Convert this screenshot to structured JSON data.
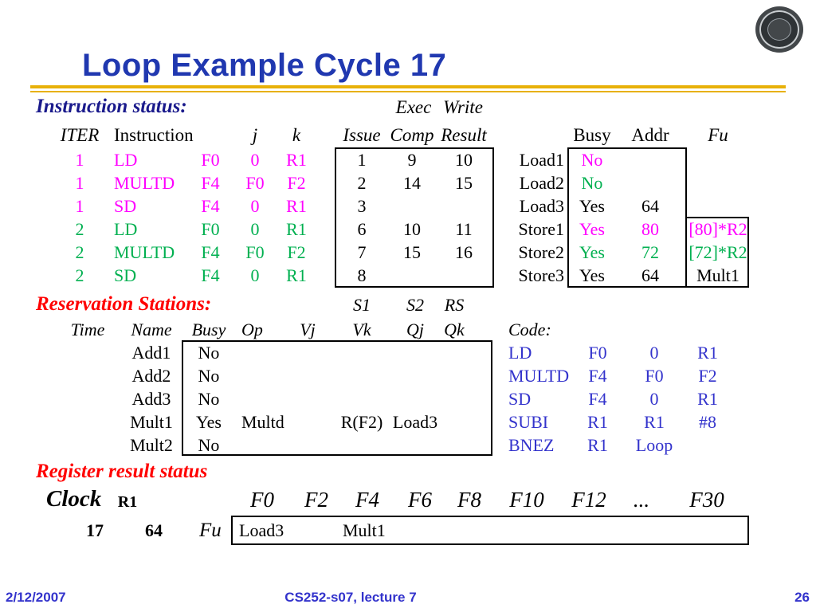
{
  "styles": {
    "title": "color:#2038B0",
    "navy": "color:#1A1A8C",
    "red": "color:#FF0000",
    "blue": "color:#3333CC",
    "magenta": "color:#FF00FF",
    "green": "color:#00B050",
    "black": "color:#000000"
  },
  "title": "Loop Example Cycle 17",
  "instruction_status": {
    "label": "Instruction status:",
    "exec": "Exec",
    "write": "Write",
    "headers": {
      "iter": "ITER",
      "instruction": "Instruction",
      "j": "j",
      "k": "k",
      "issue": "Issue",
      "comp": "Comp",
      "result": "Result",
      "busy": "Busy",
      "addr": "Addr",
      "fu": "Fu"
    },
    "rows": [
      {
        "iter": "1",
        "op": "LD",
        "dest": "F0",
        "j": "0",
        "k": "R1",
        "issue": "1",
        "comp": "9",
        "result": "10"
      },
      {
        "iter": "1",
        "op": "MULTD",
        "dest": "F4",
        "j": "F0",
        "k": "F2",
        "issue": "2",
        "comp": "14",
        "result": "15"
      },
      {
        "iter": "1",
        "op": "SD",
        "dest": "F4",
        "j": "0",
        "k": "R1",
        "issue": "3",
        "comp": "",
        "result": ""
      },
      {
        "iter": "2",
        "op": "LD",
        "dest": "F0",
        "j": "0",
        "k": "R1",
        "issue": "6",
        "comp": "10",
        "result": "11"
      },
      {
        "iter": "2",
        "op": "MULTD",
        "dest": "F4",
        "j": "F0",
        "k": "F2",
        "issue": "7",
        "comp": "15",
        "result": "16"
      },
      {
        "iter": "2",
        "op": "SD",
        "dest": "F4",
        "j": "0",
        "k": "R1",
        "issue": "8",
        "comp": "",
        "result": ""
      }
    ],
    "load_store": [
      {
        "name": "Load1",
        "busy": "No",
        "addr": "",
        "fu": ""
      },
      {
        "name": "Load2",
        "busy": "No",
        "addr": "",
        "fu": ""
      },
      {
        "name": "Load3",
        "busy": "Yes",
        "addr": "64",
        "fu": ""
      },
      {
        "name": "Store1",
        "busy": "Yes",
        "addr": "80",
        "fu": "[80]*R2"
      },
      {
        "name": "Store2",
        "busy": "Yes",
        "addr": "72",
        "fu": "[72]*R2"
      },
      {
        "name": "Store3",
        "busy": "Yes",
        "addr": "64",
        "fu": "Mult1"
      }
    ]
  },
  "reservation_stations": {
    "label": "Reservation Stations:",
    "s1": "S1",
    "s2": "S2",
    "rs": "RS",
    "headers": {
      "time": "Time",
      "name": "Name",
      "busy": "Busy",
      "op": "Op",
      "vj": "Vj",
      "vk": "Vk",
      "qj": "Qj",
      "qk": "Qk",
      "code": "Code:"
    },
    "rows": [
      {
        "name": "Add1",
        "busy": "No",
        "op": "",
        "vj": "",
        "vk": "",
        "qj": "",
        "qk": ""
      },
      {
        "name": "Add2",
        "busy": "No",
        "op": "",
        "vj": "",
        "vk": "",
        "qj": "",
        "qk": ""
      },
      {
        "name": "Add3",
        "busy": "No",
        "op": "",
        "vj": "",
        "vk": "",
        "qj": "",
        "qk": ""
      },
      {
        "name": "Mult1",
        "busy": "Yes",
        "op": "Multd",
        "vj": "",
        "vk": "R(F2)",
        "qj": "Load3",
        "qk": ""
      },
      {
        "name": "Mult2",
        "busy": "No",
        "op": "",
        "vj": "",
        "vk": "",
        "qj": "",
        "qk": ""
      }
    ],
    "code": [
      {
        "op": "LD",
        "a": "F0",
        "b": "0",
        "c": "R1"
      },
      {
        "op": "MULTD",
        "a": "F4",
        "b": "F0",
        "c": "F2"
      },
      {
        "op": "SD",
        "a": "F4",
        "b": "0",
        "c": "R1"
      },
      {
        "op": "SUBI",
        "a": "R1",
        "b": "R1",
        "c": "#8"
      },
      {
        "op": "BNEZ",
        "a": "R1",
        "b": "Loop",
        "c": ""
      }
    ]
  },
  "register_result": {
    "label": "Register result status",
    "clock_label": "Clock",
    "r1_label": "R1",
    "registers": [
      "F0",
      "F2",
      "F4",
      "F6",
      "F8",
      "F10",
      "F12",
      "...",
      "F30"
    ],
    "clock_value": "17",
    "r1_value": "64",
    "fu_label": "Fu",
    "fu_f0": "Load3",
    "fu_f4": "Mult1"
  },
  "footer": {
    "date": "2/12/2007",
    "center": "CS252-s07, lecture 7",
    "page": "26"
  }
}
